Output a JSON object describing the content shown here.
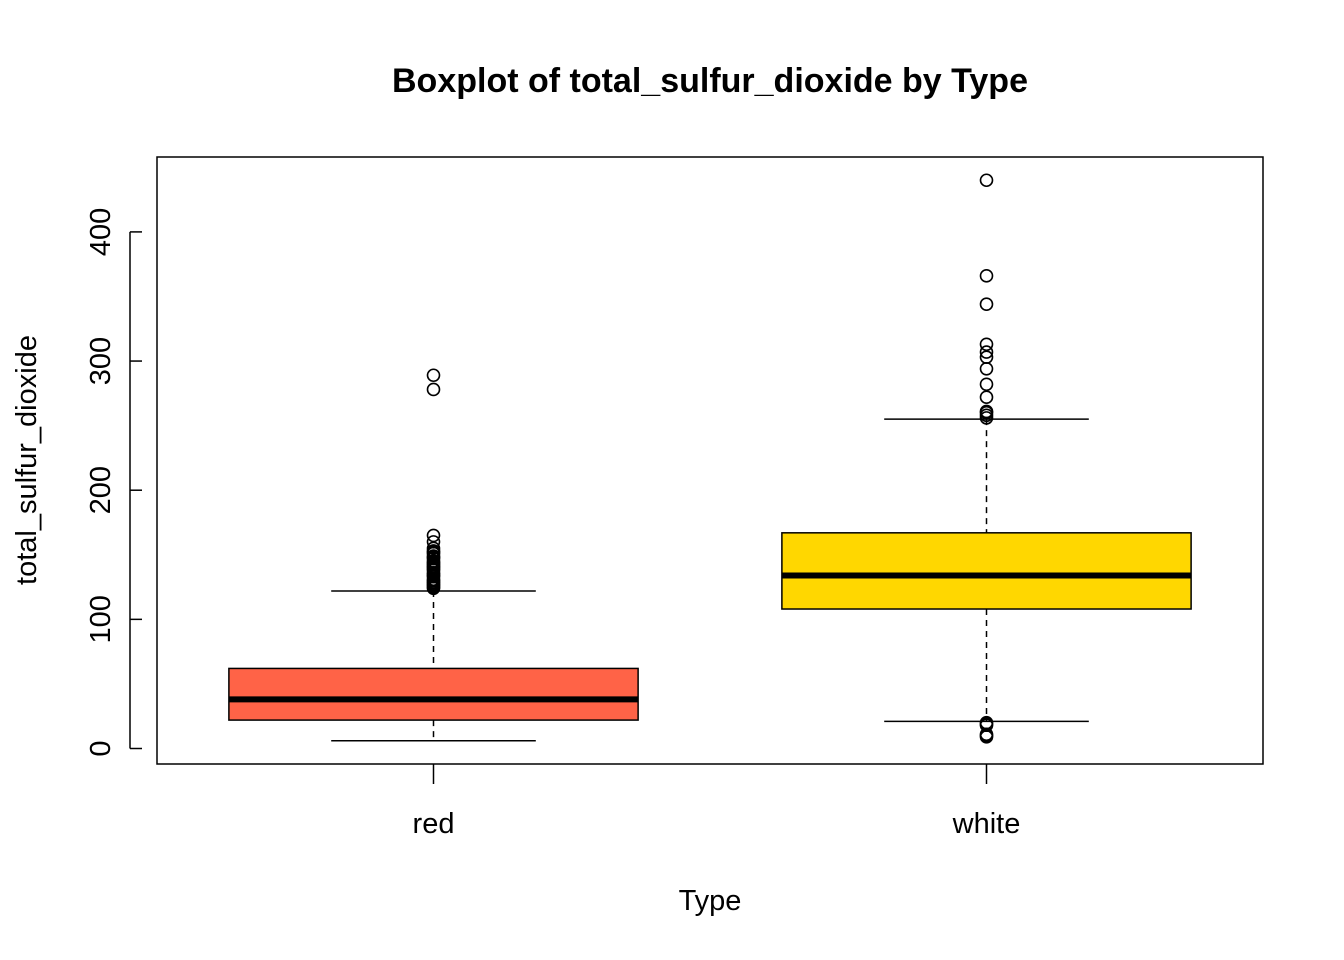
{
  "chart_data": {
    "type": "boxplot",
    "title": "Boxplot of total_sulfur_dioxide by Type",
    "xlabel": "Type",
    "ylabel": "total_sulfur_dioxide",
    "categories": [
      "red",
      "white"
    ],
    "ylim": [
      -12,
      458
    ],
    "yticks": [
      0,
      100,
      200,
      300,
      400
    ],
    "grid": false,
    "boxes": [
      {
        "name": "red",
        "color": "#FF6347",
        "whisker_low": 6,
        "q1": 22,
        "median": 38,
        "q3": 62,
        "whisker_high": 122,
        "outliers": [
          124,
          125,
          126,
          127,
          128,
          129,
          130,
          131,
          133,
          134,
          135,
          136,
          138,
          139,
          140,
          141,
          142,
          143,
          144,
          145,
          147,
          148,
          149,
          151,
          152,
          153,
          155,
          160,
          165,
          278,
          289
        ]
      },
      {
        "name": "white",
        "color": "#FFD700",
        "whisker_low": 21,
        "q1": 108,
        "median": 134,
        "q3": 167,
        "whisker_high": 255,
        "outliers": [
          9,
          10,
          11,
          18,
          19,
          20,
          256,
          258,
          260,
          261,
          272,
          282,
          294,
          303,
          307,
          313,
          344,
          366,
          440
        ]
      }
    ]
  }
}
